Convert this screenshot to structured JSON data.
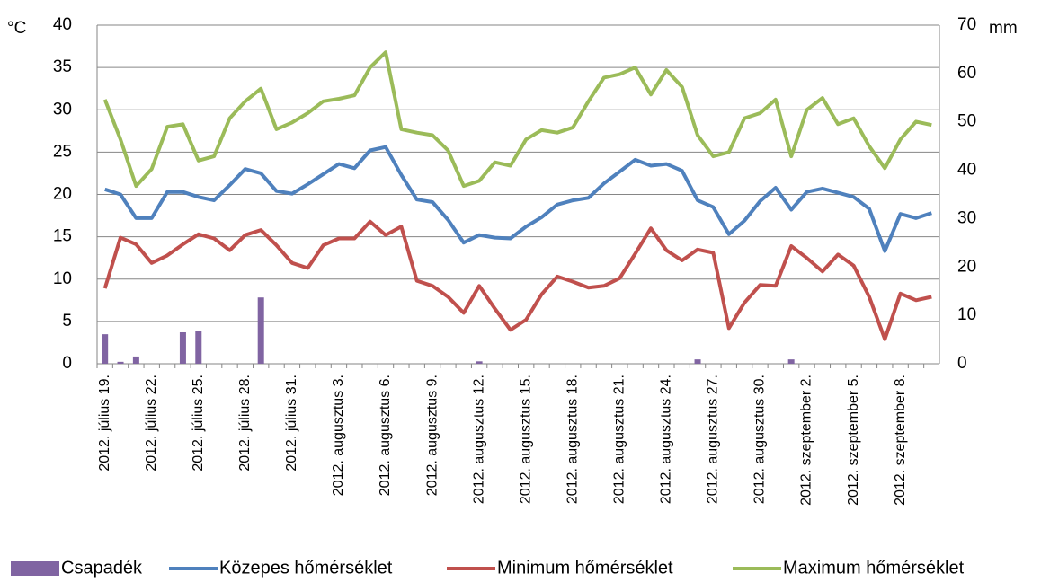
{
  "chart_data": {
    "type": "combo",
    "y_unit": "°C",
    "y2_unit": "mm",
    "categories": [
      "2012. július 19.",
      null,
      null,
      "2012. július 22.",
      null,
      null,
      "2012. július 25.",
      null,
      null,
      "2012. július 28.",
      null,
      null,
      "2012. július 31.",
      null,
      null,
      "2012. augusztus 3.",
      null,
      null,
      "2012. augusztus 6.",
      null,
      null,
      "2012. augusztus 9.",
      null,
      null,
      "2012. augusztus 12.",
      null,
      null,
      "2012. augusztus 15.",
      null,
      null,
      "2012. augusztus 18.",
      null,
      null,
      "2012. augusztus 21.",
      null,
      null,
      "2012. augusztus 24.",
      null,
      null,
      "2012. augusztus 27.",
      null,
      null,
      "2012. augusztus 30.",
      null,
      null,
      "2012. szeptember 2.",
      null,
      null,
      "2012. szeptember 5.",
      null,
      null,
      "2012. szeptember 8.",
      null,
      null
    ],
    "series": [
      {
        "name": "Csapadék",
        "type": "bar",
        "axis": "y2",
        "color": "#8064a2",
        "values": [
          6.1,
          0.4,
          1.5,
          0,
          0,
          6.5,
          6.8,
          0,
          0,
          0,
          13.7,
          0,
          0,
          0,
          0,
          0,
          0,
          0,
          0,
          0,
          0,
          0,
          0,
          0,
          0.5,
          0,
          0,
          0,
          0,
          0,
          0,
          0,
          0,
          0,
          0,
          0,
          0,
          0,
          0.9,
          0,
          0,
          0,
          0,
          0,
          0.9,
          0,
          0,
          0,
          0,
          0,
          0,
          0,
          0,
          0
        ]
      },
      {
        "name": "Közepes hőmérséklet",
        "type": "line",
        "color": "#4f81bd",
        "values": [
          20.6,
          20,
          17.2,
          17.2,
          20.3,
          20.3,
          19.7,
          19.3,
          21.1,
          23,
          22.5,
          20.4,
          20.1,
          21.2,
          22.4,
          23.6,
          23.1,
          25.2,
          25.6,
          22.3,
          19.4,
          19.1,
          17,
          14.3,
          15.2,
          14.9,
          14.8,
          16.2,
          17.3,
          18.8,
          19.3,
          19.6,
          21.3,
          22.7,
          24.1,
          23.4,
          23.6,
          22.8,
          19.3,
          18.5,
          15.3,
          16.9,
          19.2,
          20.8,
          18.2,
          20.3,
          20.7,
          20.2,
          19.7,
          18.3,
          13.3,
          17.7,
          17.2,
          17.8
        ]
      },
      {
        "name": "Minimum hőmérséklet",
        "type": "line",
        "color": "#c0504d",
        "values": [
          8.9,
          14.9,
          14.1,
          11.9,
          12.8,
          14.1,
          15.3,
          14.8,
          13.4,
          15.2,
          15.8,
          14,
          11.9,
          11.3,
          14,
          14.8,
          14.8,
          16.8,
          15.2,
          16.2,
          9.8,
          9.2,
          7.9,
          6,
          9.2,
          6.5,
          4,
          5.2,
          8.2,
          10.3,
          9.7,
          9,
          9.2,
          10.1,
          13,
          16,
          13.4,
          12.2,
          13.5,
          13.1,
          4.2,
          7.2,
          9.3,
          9.2,
          13.9,
          12.5,
          10.9,
          12.9,
          11.6,
          7.9,
          2.9,
          8.3,
          7.5,
          7.9
        ]
      },
      {
        "name": "Maximum hőmérséklet",
        "type": "line",
        "color": "#9bbb59",
        "values": [
          31.2,
          26.5,
          21,
          23,
          28,
          28.3,
          24,
          24.5,
          29,
          31,
          32.5,
          27.7,
          28.5,
          29.6,
          31,
          31.3,
          31.7,
          35,
          36.8,
          27.7,
          27.3,
          27,
          25.2,
          21,
          21.6,
          23.8,
          23.4,
          26.5,
          27.6,
          27.3,
          27.9,
          31,
          33.8,
          34.2,
          35,
          31.8,
          34.7,
          32.7,
          27,
          24.5,
          25,
          29,
          29.6,
          31.2,
          24.5,
          30,
          31.4,
          28.3,
          29,
          25.7,
          23.1,
          26.5,
          28.6,
          28.2
        ]
      }
    ],
    "ylim": [
      0,
      40
    ],
    "yticks": [
      0,
      5,
      10,
      15,
      20,
      25,
      30,
      35,
      40
    ],
    "y2lim": [
      0,
      70
    ],
    "y2ticks": [
      0,
      10,
      20,
      30,
      40,
      50,
      60,
      70
    ],
    "grid": true,
    "legend": "bottom"
  }
}
